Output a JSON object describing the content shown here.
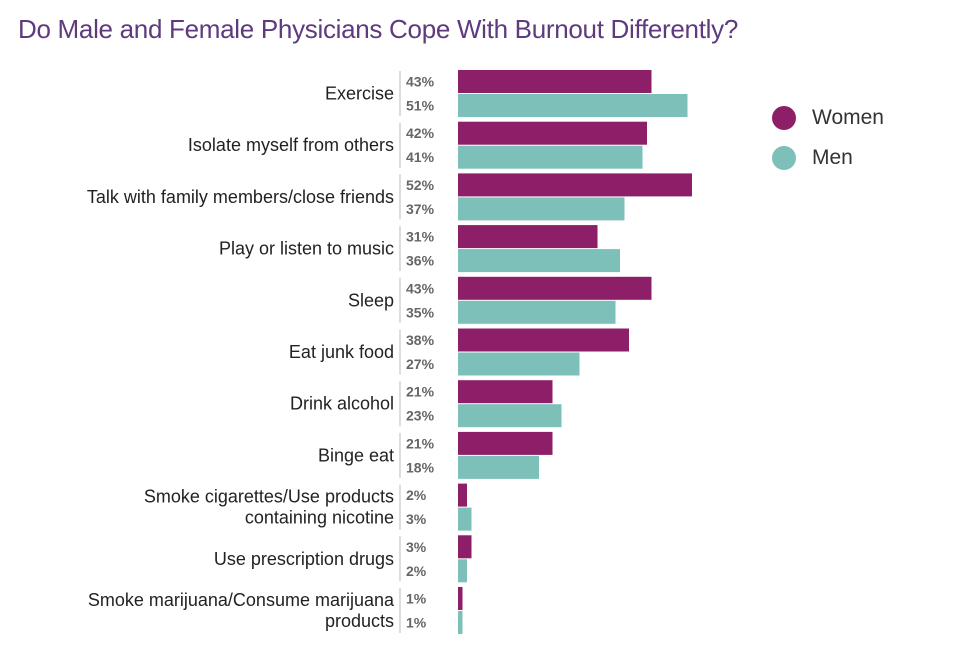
{
  "chart_data": {
    "type": "bar",
    "orientation": "horizontal",
    "title": "Do Male and Female Physicians Cope With Burnout Differently?",
    "categories": [
      [
        "Exercise"
      ],
      [
        "Isolate myself from others"
      ],
      [
        "Talk with family members/close friends"
      ],
      [
        "Play or listen to music"
      ],
      [
        "Sleep"
      ],
      [
        "Eat junk food"
      ],
      [
        "Drink alcohol"
      ],
      [
        "Binge eat"
      ],
      [
        "Smoke cigarettes/Use products",
        "containing nicotine"
      ],
      [
        "Use prescription drugs"
      ],
      [
        "Smoke marijuana/Consume marijuana",
        "products"
      ]
    ],
    "series": [
      {
        "name": "Women",
        "color": "#8c1f67",
        "values": [
          43,
          42,
          52,
          31,
          43,
          38,
          21,
          21,
          2,
          3,
          1
        ]
      },
      {
        "name": "Men",
        "color": "#7dbfb9",
        "values": [
          51,
          41,
          37,
          36,
          35,
          27,
          23,
          18,
          3,
          2,
          1
        ]
      }
    ],
    "value_suffix": "%",
    "xlim": [
      0,
      100
    ],
    "grid": false,
    "legend_position": "top-right"
  }
}
